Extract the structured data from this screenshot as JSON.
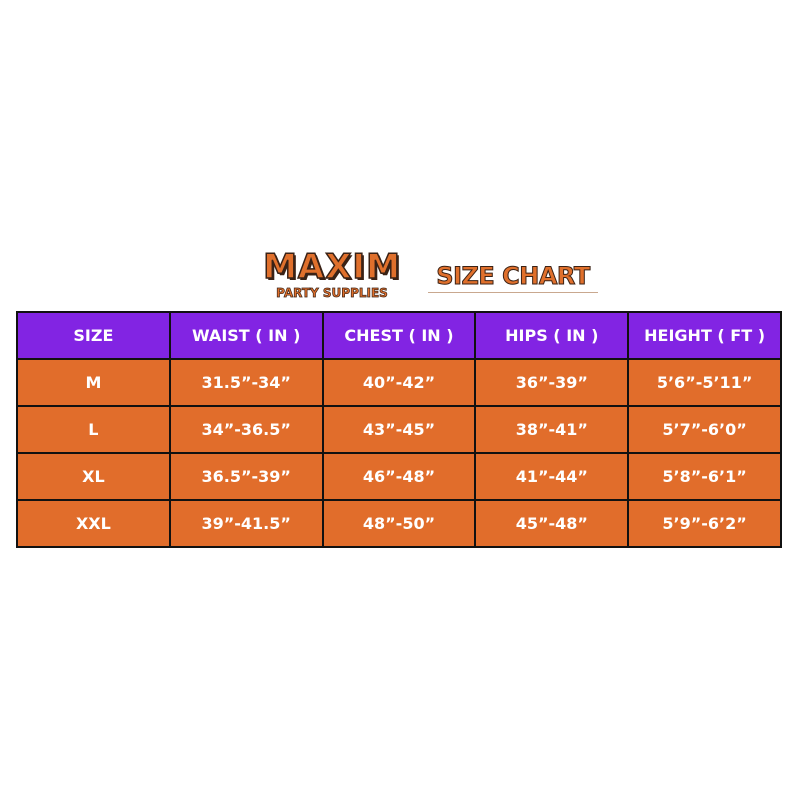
{
  "logo": {
    "main": "MAXIM",
    "sub": "PARTY SUPPLIES"
  },
  "title": "SIZE CHART",
  "colors": {
    "header": "#8224e3",
    "rows": "#e16d2b",
    "brand": "#e0702c"
  },
  "table": {
    "headers": [
      "SIZE",
      "WAIST ( IN )",
      "CHEST ( IN )",
      "HIPS ( IN )",
      "HEIGHT ( FT )"
    ],
    "rows": [
      [
        "M",
        "31.5”-34”",
        "40”-42”",
        "36”-39”",
        "5’6”-5’11”"
      ],
      [
        "L",
        "34”-36.5”",
        "43”-45”",
        "38”-41”",
        "5’7”-6’0”"
      ],
      [
        "XL",
        "36.5”-39”",
        "46”-48”",
        "41”-44”",
        "5’8”-6’1”"
      ],
      [
        "XXL",
        "39”-41.5”",
        "48”-50”",
        "45”-48”",
        "5’9”-6’2”"
      ]
    ]
  }
}
